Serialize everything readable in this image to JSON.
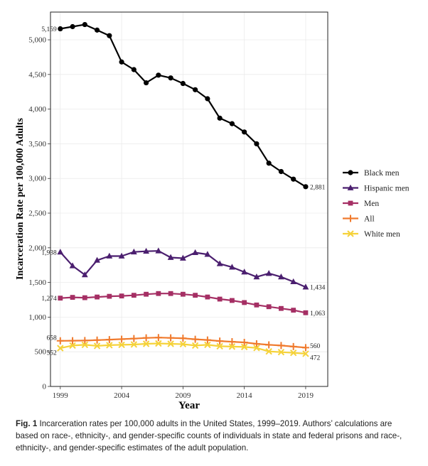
{
  "chart_data": {
    "type": "line",
    "xlabel": "Year",
    "ylabel": "Incarceration Rate per 100,000 Adults",
    "xlim": [
      1998.2,
      2020.8
    ],
    "ylim": [
      0,
      5400
    ],
    "x_ticks": [
      "1999",
      "2004",
      "2009",
      "2014",
      "2019"
    ],
    "y_ticks": [
      "0",
      "500",
      "1,000",
      "1,500",
      "2,000",
      "2,500",
      "3,000",
      "3,500",
      "4,000",
      "4,500",
      "5,000"
    ],
    "grid": true,
    "legend_position": "right",
    "x": [
      1999,
      2000,
      2001,
      2002,
      2003,
      2004,
      2005,
      2006,
      2007,
      2008,
      2009,
      2010,
      2011,
      2012,
      2013,
      2014,
      2015,
      2016,
      2017,
      2018,
      2019
    ],
    "series": [
      {
        "name": "Black men",
        "color": "#000000",
        "marker": "circle",
        "values": [
          5159,
          5190,
          5220,
          5140,
          5060,
          4680,
          4570,
          4380,
          4490,
          4450,
          4370,
          4280,
          4150,
          3870,
          3790,
          3670,
          3500,
          3220,
          3100,
          2990,
          2881
        ],
        "start_label": "5,159",
        "end_label": "2,881"
      },
      {
        "name": "Hispanic men",
        "color": "#4b1f6f",
        "marker": "triangle",
        "values": [
          1938,
          1740,
          1610,
          1820,
          1880,
          1880,
          1940,
          1950,
          1955,
          1860,
          1850,
          1930,
          1905,
          1770,
          1720,
          1650,
          1580,
          1630,
          1580,
          1510,
          1434
        ],
        "start_label": "1,938",
        "end_label": "1,434"
      },
      {
        "name": "Men",
        "color": "#a52f64",
        "marker": "square",
        "values": [
          1274,
          1285,
          1280,
          1290,
          1300,
          1305,
          1315,
          1330,
          1340,
          1340,
          1330,
          1315,
          1290,
          1260,
          1240,
          1210,
          1175,
          1150,
          1125,
          1100,
          1063
        ],
        "start_label": "1,274",
        "end_label": "1,063"
      },
      {
        "name": "All",
        "color": "#f07a2d",
        "marker": "plus",
        "values": [
          658,
          660,
          662,
          668,
          675,
          682,
          690,
          700,
          705,
          700,
          695,
          680,
          670,
          655,
          645,
          635,
          615,
          600,
          590,
          575,
          560
        ],
        "start_label": "658",
        "end_label": "560"
      },
      {
        "name": "White men",
        "color": "#f5d23a",
        "marker": "x",
        "values": [
          552,
          590,
          600,
          585,
          595,
          600,
          605,
          615,
          620,
          615,
          610,
          590,
          600,
          580,
          575,
          570,
          555,
          505,
          495,
          485,
          472
        ],
        "start_label": "552",
        "end_label": "472"
      }
    ]
  },
  "caption": {
    "label": "Fig. 1",
    "text": "Incarceration rates per 100,000 adults in the United States, 1999–2019. Authors’ calculations are based on race-, ethnicity-, and gender-specific counts of individuals in state and federal prisons and race-, ethnicity-, and gender-specific estimates of the adult population."
  }
}
